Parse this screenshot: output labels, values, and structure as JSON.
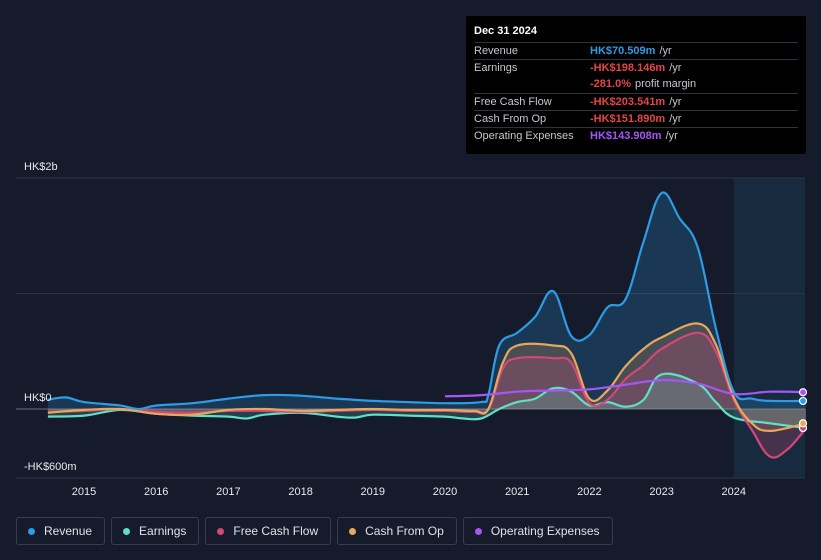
{
  "tooltip": {
    "date": "Dec 31 2024",
    "rows": [
      {
        "label": "Revenue",
        "value": "HK$70.509m",
        "unit": "/yr",
        "color": "#2e9be6"
      },
      {
        "label": "Earnings",
        "value": "-HK$198.146m",
        "unit": "/yr",
        "color": "#e64545"
      },
      {
        "label": "",
        "value": "-281.0%",
        "unit": "profit margin",
        "color": "#e64545"
      },
      {
        "label": "Free Cash Flow",
        "value": "-HK$203.541m",
        "unit": "/yr",
        "color": "#e64545"
      },
      {
        "label": "Cash From Op",
        "value": "-HK$151.890m",
        "unit": "/yr",
        "color": "#e64545"
      },
      {
        "label": "Operating Expenses",
        "value": "HK$143.908m",
        "unit": "/yr",
        "color": "#a855f7"
      }
    ]
  },
  "legend": [
    {
      "label": "Revenue",
      "color": "#2e9be6"
    },
    {
      "label": "Earnings",
      "color": "#5ee0c8"
    },
    {
      "label": "Free Cash Flow",
      "color": "#d5467a"
    },
    {
      "label": "Cash From Op",
      "color": "#e9a75a"
    },
    {
      "label": "Operating Expenses",
      "color": "#a855f7"
    }
  ],
  "chart_data": {
    "type": "line",
    "title": "",
    "xlabel": "",
    "ylabel": "",
    "y_tick_labels": [
      {
        "value": 2000,
        "label": "HK$2b"
      },
      {
        "value": 0,
        "label": "HK$0"
      },
      {
        "value": -600,
        "label": "-HK$600m"
      }
    ],
    "ylim": [
      -600,
      2000
    ],
    "xlim": [
      2014.4,
      2025.0
    ],
    "x_ticks": [
      2015,
      2016,
      2017,
      2018,
      2019,
      2020,
      2021,
      2022,
      2023,
      2024
    ],
    "highlight_region": [
      2024.0,
      2025.0
    ],
    "series": [
      {
        "name": "Revenue",
        "color": "#2e9be6",
        "fill": true,
        "points": [
          [
            2014.5,
            80
          ],
          [
            2014.75,
            100
          ],
          [
            2015.0,
            60
          ],
          [
            2015.5,
            30
          ],
          [
            2015.75,
            0
          ],
          [
            2016.0,
            30
          ],
          [
            2016.5,
            50
          ],
          [
            2017.0,
            90
          ],
          [
            2017.5,
            120
          ],
          [
            2018.0,
            115
          ],
          [
            2018.5,
            90
          ],
          [
            2019.0,
            70
          ],
          [
            2019.5,
            60
          ],
          [
            2020.0,
            50
          ],
          [
            2020.5,
            60
          ],
          [
            2020.6,
            120
          ],
          [
            2020.75,
            550
          ],
          [
            2021.0,
            660
          ],
          [
            2021.25,
            800
          ],
          [
            2021.5,
            1020
          ],
          [
            2021.75,
            630
          ],
          [
            2022.0,
            640
          ],
          [
            2022.25,
            880
          ],
          [
            2022.5,
            950
          ],
          [
            2022.75,
            1450
          ],
          [
            2023.0,
            1870
          ],
          [
            2023.25,
            1650
          ],
          [
            2023.5,
            1400
          ],
          [
            2023.75,
            700
          ],
          [
            2024.0,
            150
          ],
          [
            2024.25,
            90
          ],
          [
            2024.5,
            70
          ],
          [
            2025.0,
            70
          ]
        ]
      },
      {
        "name": "Earnings",
        "color": "#5ee0c8",
        "fill": true,
        "points": [
          [
            2014.5,
            -80
          ],
          [
            2015.0,
            -70
          ],
          [
            2015.5,
            -10
          ],
          [
            2016.0,
            -50
          ],
          [
            2016.5,
            -70
          ],
          [
            2017.0,
            -80
          ],
          [
            2017.25,
            -100
          ],
          [
            2017.5,
            -60
          ],
          [
            2018.0,
            -40
          ],
          [
            2018.5,
            -80
          ],
          [
            2018.75,
            -90
          ],
          [
            2019.0,
            -60
          ],
          [
            2019.5,
            -70
          ],
          [
            2020.0,
            -80
          ],
          [
            2020.25,
            -100
          ],
          [
            2020.5,
            -100
          ],
          [
            2020.75,
            0
          ],
          [
            2021.0,
            60
          ],
          [
            2021.25,
            90
          ],
          [
            2021.5,
            180
          ],
          [
            2021.75,
            150
          ],
          [
            2022.0,
            30
          ],
          [
            2022.25,
            60
          ],
          [
            2022.5,
            20
          ],
          [
            2022.75,
            80
          ],
          [
            2023.0,
            300
          ],
          [
            2023.5,
            220
          ],
          [
            2023.75,
            60
          ],
          [
            2024.0,
            -90
          ],
          [
            2024.5,
            -150
          ],
          [
            2025.0,
            -200
          ]
        ]
      },
      {
        "name": "Free Cash Flow",
        "color": "#d5467a",
        "fill": true,
        "points": [
          [
            2014.5,
            -30
          ],
          [
            2015.0,
            -20
          ],
          [
            2015.5,
            0
          ],
          [
            2016.0,
            -30
          ],
          [
            2016.5,
            -40
          ],
          [
            2017.0,
            -20
          ],
          [
            2017.5,
            -20
          ],
          [
            2018.0,
            -30
          ],
          [
            2018.5,
            -20
          ],
          [
            2019.0,
            -10
          ],
          [
            2019.5,
            -20
          ],
          [
            2020.0,
            -20
          ],
          [
            2020.4,
            -30
          ],
          [
            2020.6,
            -10
          ],
          [
            2020.8,
            350
          ],
          [
            2021.0,
            440
          ],
          [
            2021.5,
            440
          ],
          [
            2021.75,
            400
          ],
          [
            2022.0,
            50
          ],
          [
            2022.25,
            80
          ],
          [
            2022.5,
            260
          ],
          [
            2022.75,
            380
          ],
          [
            2023.0,
            520
          ],
          [
            2023.5,
            660
          ],
          [
            2023.75,
            500
          ],
          [
            2024.0,
            80
          ],
          [
            2024.25,
            -220
          ],
          [
            2024.5,
            -500
          ],
          [
            2024.75,
            -420
          ],
          [
            2025.0,
            -200
          ]
        ]
      },
      {
        "name": "Cash From Op",
        "color": "#e9a75a",
        "fill": true,
        "points": [
          [
            2014.5,
            -40
          ],
          [
            2015.0,
            -10
          ],
          [
            2015.5,
            0
          ],
          [
            2016.0,
            -50
          ],
          [
            2016.5,
            -60
          ],
          [
            2017.0,
            -10
          ],
          [
            2017.5,
            0
          ],
          [
            2018.0,
            -20
          ],
          [
            2018.5,
            -10
          ],
          [
            2019.0,
            0
          ],
          [
            2019.5,
            -10
          ],
          [
            2020.0,
            -10
          ],
          [
            2020.4,
            -20
          ],
          [
            2020.6,
            0
          ],
          [
            2020.8,
            400
          ],
          [
            2021.0,
            550
          ],
          [
            2021.5,
            550
          ],
          [
            2021.75,
            480
          ],
          [
            2022.0,
            90
          ],
          [
            2022.25,
            160
          ],
          [
            2022.5,
            370
          ],
          [
            2022.75,
            520
          ],
          [
            2023.0,
            620
          ],
          [
            2023.5,
            740
          ],
          [
            2023.75,
            560
          ],
          [
            2024.0,
            100
          ],
          [
            2024.25,
            -150
          ],
          [
            2024.5,
            -230
          ],
          [
            2025.0,
            -150
          ]
        ]
      },
      {
        "name": "Operating Expenses",
        "color": "#a855f7",
        "fill": false,
        "points": [
          [
            2020.0,
            110
          ],
          [
            2020.5,
            120
          ],
          [
            2021.0,
            150
          ],
          [
            2021.5,
            160
          ],
          [
            2022.0,
            170
          ],
          [
            2022.5,
            210
          ],
          [
            2023.0,
            250
          ],
          [
            2023.5,
            220
          ],
          [
            2024.0,
            130
          ],
          [
            2024.5,
            150
          ],
          [
            2025.0,
            145
          ]
        ]
      }
    ]
  }
}
